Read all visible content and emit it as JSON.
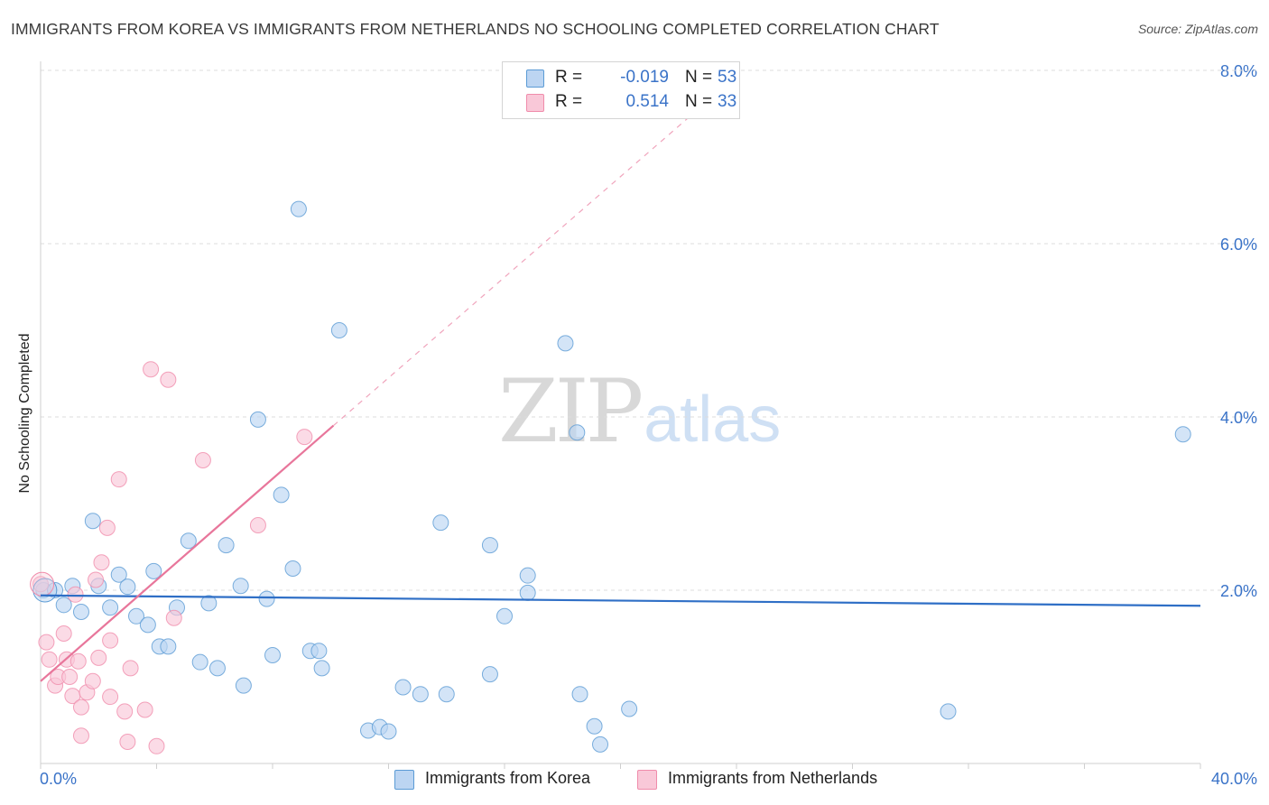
{
  "title": "IMMIGRANTS FROM KOREA VS IMMIGRANTS FROM NETHERLANDS NO SCHOOLING COMPLETED CORRELATION CHART",
  "source": "Source: ZipAtlas.com",
  "watermark": {
    "zip": "ZIP",
    "atlas": "atlas"
  },
  "legend": {
    "korea": {
      "r_label": "R =",
      "r_value": "-0.019",
      "n_label": "N =",
      "n_value": "53",
      "color": "#5b9bd5"
    },
    "netherlands": {
      "r_label": "R =",
      "r_value": "0.514",
      "n_label": "N =",
      "n_value": "33",
      "color": "#f08cab"
    }
  },
  "bottom_legend": {
    "korea": "Immigrants from Korea",
    "netherlands": "Immigrants from Netherlands"
  },
  "chart_data": {
    "type": "scatter",
    "ylabel": "No Schooling Completed",
    "xlabel": "",
    "xlim": [
      0,
      40
    ],
    "ylim": [
      0,
      8
    ],
    "x_tick_labels": [
      "0.0%",
      "40.0%"
    ],
    "y_ticks": [
      2,
      4,
      6,
      8
    ],
    "y_tick_labels": [
      "2.0%",
      "4.0%",
      "6.0%",
      "8.0%"
    ],
    "grid": true,
    "series": [
      {
        "name": "Immigrants from Korea",
        "color": "#5b9bd5",
        "fill": "#bcd5f2",
        "r": -0.019,
        "n": 53,
        "trend": {
          "x": [
            0,
            40
          ],
          "y": [
            1.94,
            1.82
          ],
          "style": "solid"
        },
        "points": [
          [
            0.1,
            2.0
          ],
          [
            0.5,
            2.0
          ],
          [
            0.8,
            1.83
          ],
          [
            1.1,
            2.05
          ],
          [
            1.4,
            1.75
          ],
          [
            1.8,
            2.8
          ],
          [
            2.0,
            2.05
          ],
          [
            2.4,
            1.8
          ],
          [
            2.7,
            2.18
          ],
          [
            3.0,
            2.04
          ],
          [
            3.3,
            1.7
          ],
          [
            3.7,
            1.6
          ],
          [
            3.9,
            2.22
          ],
          [
            4.1,
            1.35
          ],
          [
            4.4,
            1.35
          ],
          [
            4.7,
            1.8
          ],
          [
            5.1,
            2.57
          ],
          [
            5.5,
            1.17
          ],
          [
            5.8,
            1.85
          ],
          [
            6.1,
            1.1
          ],
          [
            6.4,
            2.52
          ],
          [
            6.9,
            2.05
          ],
          [
            7.0,
            0.9
          ],
          [
            7.5,
            3.97
          ],
          [
            7.8,
            1.9
          ],
          [
            8.0,
            1.25
          ],
          [
            8.3,
            3.1
          ],
          [
            8.7,
            2.25
          ],
          [
            8.9,
            6.4
          ],
          [
            9.3,
            1.3
          ],
          [
            9.6,
            1.3
          ],
          [
            9.7,
            1.1
          ],
          [
            10.3,
            5.0
          ],
          [
            11.3,
            0.38
          ],
          [
            11.7,
            0.42
          ],
          [
            12.0,
            0.37
          ],
          [
            12.5,
            0.88
          ],
          [
            13.1,
            0.8
          ],
          [
            13.8,
            2.78
          ],
          [
            14.0,
            0.8
          ],
          [
            15.5,
            2.52
          ],
          [
            15.5,
            1.03
          ],
          [
            16.0,
            1.7
          ],
          [
            16.8,
            2.17
          ],
          [
            16.8,
            1.97
          ],
          [
            18.1,
            4.85
          ],
          [
            18.5,
            3.82
          ],
          [
            18.6,
            0.8
          ],
          [
            19.1,
            0.43
          ],
          [
            19.3,
            0.22
          ],
          [
            20.3,
            0.63
          ],
          [
            31.3,
            0.6
          ],
          [
            39.4,
            3.8
          ]
        ]
      },
      {
        "name": "Immigrants from Netherlands",
        "color": "#f08cab",
        "fill": "#f9c8d8",
        "r": 0.514,
        "n": 33,
        "trend": {
          "x": [
            0,
            10.1
          ],
          "y": [
            0.95,
            3.9
          ],
          "style": "solid",
          "extension": {
            "x": [
              10.1,
              22.5
            ],
            "y": [
              3.9,
              7.5
            ],
            "style": "dashed"
          }
        },
        "points": [
          [
            0.0,
            2.07
          ],
          [
            0.2,
            1.4
          ],
          [
            0.3,
            1.2
          ],
          [
            0.5,
            0.9
          ],
          [
            0.6,
            1.0
          ],
          [
            0.8,
            1.5
          ],
          [
            0.9,
            1.2
          ],
          [
            1.0,
            1.0
          ],
          [
            1.1,
            0.78
          ],
          [
            1.2,
            1.95
          ],
          [
            1.3,
            1.18
          ],
          [
            1.4,
            0.65
          ],
          [
            1.4,
            0.32
          ],
          [
            1.6,
            0.82
          ],
          [
            1.8,
            0.95
          ],
          [
            1.9,
            2.12
          ],
          [
            2.0,
            1.22
          ],
          [
            2.1,
            2.32
          ],
          [
            2.3,
            2.72
          ],
          [
            2.4,
            0.77
          ],
          [
            2.4,
            1.42
          ],
          [
            2.7,
            3.28
          ],
          [
            2.9,
            0.6
          ],
          [
            3.0,
            0.25
          ],
          [
            3.1,
            1.1
          ],
          [
            3.6,
            0.62
          ],
          [
            3.8,
            4.55
          ],
          [
            4.0,
            0.2
          ],
          [
            4.4,
            4.43
          ],
          [
            4.6,
            1.68
          ],
          [
            5.6,
            3.5
          ],
          [
            7.5,
            2.75
          ],
          [
            9.1,
            3.77
          ]
        ]
      }
    ]
  }
}
